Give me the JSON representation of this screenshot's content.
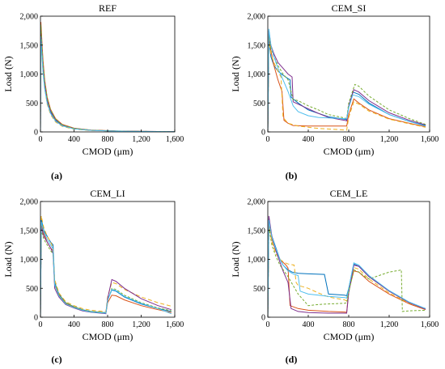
{
  "captions": [
    "(a)",
    "(b)",
    "(c)",
    "(d)"
  ],
  "colors": [
    "#0072BD",
    "#D95319",
    "#EDB120",
    "#7E2F8E",
    "#77AC30",
    "#4DBEEE",
    "#A2142F"
  ],
  "chart_data": [
    {
      "type": "line",
      "title": "REF",
      "xlabel": "CMOD (μm)",
      "ylabel": "Load (N)",
      "xlim": [
        0,
        1600
      ],
      "ylim": [
        0,
        2000
      ],
      "xticks": [
        "0",
        "400",
        "800",
        "1,200",
        "1,600"
      ],
      "yticks": [
        "0",
        "500",
        "1,000",
        "1,500",
        "2,000"
      ],
      "grid": false,
      "series": [
        {
          "x": [
            0,
            5,
            15,
            30,
            50,
            80,
            120,
            180,
            260,
            400,
            600,
            900,
            1200,
            1600
          ],
          "y": [
            0,
            1800,
            1500,
            1150,
            850,
            560,
            360,
            210,
            120,
            60,
            30,
            15,
            8,
            5
          ]
        },
        {
          "x": [
            0,
            5,
            15,
            30,
            50,
            80,
            120,
            180,
            260,
            400,
            600,
            900,
            1200,
            1600
          ],
          "y": [
            0,
            1900,
            1620,
            1250,
            900,
            600,
            390,
            230,
            130,
            65,
            32,
            16,
            9,
            5
          ]
        },
        {
          "x": [
            0,
            5,
            15,
            30,
            50,
            80,
            120,
            180,
            260,
            400,
            600,
            900,
            1200,
            1600
          ],
          "y": [
            0,
            1700,
            1400,
            1050,
            760,
            480,
            300,
            170,
            95,
            48,
            24,
            12,
            7,
            4
          ]
        },
        {
          "x": [
            0,
            5,
            15,
            30,
            50,
            80,
            120,
            180,
            260,
            400,
            600,
            900,
            1200,
            1600
          ],
          "y": [
            0,
            1750,
            1480,
            1120,
            820,
            530,
            340,
            195,
            110,
            56,
            28,
            14,
            8,
            5
          ]
        },
        {
          "x": [
            0,
            5,
            15,
            30,
            50,
            80,
            120,
            180,
            260,
            400,
            600,
            900,
            1200,
            1600
          ],
          "y": [
            0,
            1850,
            1560,
            1200,
            880,
            580,
            380,
            220,
            125,
            62,
            31,
            15,
            8,
            5
          ]
        },
        {
          "x": [
            0,
            5,
            15,
            30,
            50,
            80,
            120,
            180,
            260,
            400,
            600,
            900,
            1200,
            1600
          ],
          "y": [
            0,
            1650,
            1380,
            1040,
            750,
            500,
            320,
            185,
            105,
            52,
            26,
            13,
            7,
            4
          ]
        }
      ]
    },
    {
      "type": "line",
      "title": "CEM_SI",
      "xlabel": "CMOD (μm)",
      "ylabel": "Load (N)",
      "xlim": [
        0,
        1600
      ],
      "ylim": [
        0,
        2000
      ],
      "xticks": [
        "0",
        "400",
        "800",
        "1,200",
        "1,600"
      ],
      "yticks": [
        "0",
        "500",
        "1,000",
        "1,500",
        "2,000"
      ],
      "grid": false,
      "series": [
        {
          "x": [
            0,
            10,
            30,
            60,
            100,
            150,
            200,
            220,
            230,
            300,
            400,
            600,
            760,
            780,
            800,
            840,
            900,
            1000,
            1200,
            1400,
            1560
          ],
          "y": [
            0,
            1650,
            1300,
            1150,
            1050,
            980,
            920,
            900,
            600,
            500,
            380,
            260,
            220,
            210,
            430,
            690,
            650,
            500,
            300,
            180,
            110
          ]
        },
        {
          "x": [
            0,
            10,
            30,
            60,
            100,
            140,
            160,
            200,
            250,
            400,
            600,
            760,
            780,
            800,
            850,
            900,
            1000,
            1200,
            1400,
            1560
          ],
          "y": [
            0,
            1700,
            1400,
            1150,
            900,
            700,
            200,
            150,
            110,
            100,
            100,
            100,
            100,
            300,
            570,
            500,
            380,
            230,
            150,
            90
          ]
        },
        {
          "x": [
            0,
            10,
            30,
            60,
            100,
            130,
            150,
            200,
            300,
            500,
            700,
            780,
            800,
            850,
            900,
            1000,
            1200,
            1400,
            1560
          ],
          "y": [
            0,
            1600,
            1350,
            1200,
            1050,
            950,
            250,
            150,
            100,
            60,
            40,
            30,
            250,
            520,
            480,
            360,
            220,
            140,
            80
          ]
        },
        {
          "x": [
            0,
            10,
            30,
            60,
            100,
            150,
            200,
            240,
            250,
            300,
            400,
            500,
            600,
            760,
            780,
            800,
            850,
            900,
            1000,
            1200,
            1400,
            1560
          ],
          "y": [
            0,
            1750,
            1500,
            1350,
            1200,
            1100,
            1000,
            950,
            520,
            480,
            400,
            320,
            250,
            200,
            190,
            450,
            730,
            690,
            540,
            330,
            200,
            120
          ]
        },
        {
          "x": [
            0,
            10,
            30,
            60,
            100,
            150,
            200,
            250,
            300,
            400,
            500,
            600,
            760,
            780,
            800,
            860,
            900,
            1000,
            1200,
            1400,
            1560
          ],
          "y": [
            0,
            1680,
            1450,
            1300,
            1150,
            1000,
            900,
            560,
            540,
            450,
            380,
            300,
            240,
            230,
            500,
            820,
            790,
            620,
            380,
            230,
            130
          ]
        },
        {
          "x": [
            0,
            10,
            30,
            60,
            100,
            150,
            200,
            250,
            300,
            400,
            500,
            600,
            700,
            760,
            780,
            800,
            840,
            900,
            1000,
            1200,
            1400,
            1560
          ],
          "y": [
            0,
            1780,
            1500,
            1300,
            1100,
            900,
            700,
            450,
            350,
            280,
            250,
            240,
            235,
            230,
            230,
            420,
            640,
            610,
            480,
            300,
            180,
            100
          ]
        }
      ]
    },
    {
      "type": "line",
      "title": "CEM_LI",
      "xlabel": "CMOD (μm)",
      "ylabel": "Load (N)",
      "xlim": [
        0,
        1600
      ],
      "ylim": [
        0,
        2000
      ],
      "xticks": [
        "0",
        "400",
        "800",
        "1,200",
        "1,600"
      ],
      "yticks": [
        "0",
        "500",
        "1,000",
        "1,500",
        "2,000"
      ],
      "grid": false,
      "series": [
        {
          "x": [
            0,
            10,
            40,
            80,
            120,
            150,
            170,
            220,
            300,
            400,
            500,
            600,
            760,
            780,
            800,
            850,
            900,
            1000,
            1200,
            1400,
            1560
          ],
          "y": [
            0,
            1700,
            1500,
            1400,
            1300,
            1250,
            600,
            400,
            250,
            180,
            130,
            100,
            80,
            75,
            300,
            470,
            450,
            350,
            230,
            150,
            100
          ]
        },
        {
          "x": [
            0,
            10,
            40,
            80,
            120,
            150,
            170,
            220,
            300,
            400,
            500,
            600,
            760,
            780,
            800,
            850,
            900,
            1000,
            1200,
            1400,
            1560
          ],
          "y": [
            0,
            1600,
            1450,
            1300,
            1200,
            1150,
            550,
            380,
            240,
            170,
            120,
            90,
            70,
            65,
            250,
            380,
            370,
            300,
            200,
            130,
            80
          ]
        },
        {
          "x": [
            0,
            10,
            40,
            80,
            120,
            150,
            170,
            220,
            300,
            400,
            500,
            600,
            760,
            780,
            800,
            850,
            900,
            1000,
            1200,
            1400,
            1560
          ],
          "y": [
            0,
            1750,
            1550,
            1400,
            1300,
            1200,
            650,
            420,
            270,
            200,
            150,
            120,
            100,
            95,
            350,
            600,
            580,
            480,
            350,
            250,
            190
          ]
        },
        {
          "x": [
            0,
            10,
            40,
            80,
            120,
            150,
            170,
            220,
            300,
            400,
            500,
            600,
            760,
            780,
            800,
            850,
            900,
            1000,
            1200,
            1400,
            1560
          ],
          "y": [
            0,
            1550,
            1400,
            1300,
            1200,
            1100,
            500,
            350,
            220,
            160,
            110,
            85,
            65,
            60,
            320,
            650,
            620,
            500,
            320,
            200,
            130
          ]
        },
        {
          "x": [
            0,
            10,
            40,
            80,
            120,
            150,
            170,
            220,
            300,
            400,
            500,
            600,
            760,
            780,
            800,
            850,
            900,
            1000,
            1200,
            1400,
            1560
          ],
          "y": [
            0,
            1500,
            1350,
            1250,
            1150,
            1100,
            580,
            390,
            250,
            180,
            130,
            100,
            80,
            75,
            280,
            500,
            480,
            380,
            250,
            160,
            110
          ]
        },
        {
          "x": [
            0,
            10,
            40,
            80,
            120,
            150,
            170,
            220,
            300,
            400,
            500,
            600,
            760,
            780,
            800,
            850,
            900,
            1000,
            1200,
            1400,
            1560
          ],
          "y": [
            0,
            1650,
            1480,
            1350,
            1250,
            1180,
            560,
            370,
            230,
            165,
            120,
            90,
            72,
            68,
            290,
            480,
            460,
            360,
            240,
            150,
            60
          ]
        }
      ]
    },
    {
      "type": "line",
      "title": "CEM_LE",
      "xlabel": "CMOD (μm)",
      "ylabel": "Load (N)",
      "xlim": [
        0,
        1600
      ],
      "ylim": [
        0,
        2000
      ],
      "xticks": [
        "0",
        "400",
        "800",
        "1,200",
        "1,600"
      ],
      "yticks": [
        "0",
        "500",
        "1,000",
        "1,500",
        "2,000"
      ],
      "grid": false,
      "series": [
        {
          "x": [
            0,
            10,
            40,
            80,
            120,
            150,
            180,
            200,
            240,
            300,
            400,
            560,
            600,
            760,
            780,
            800,
            850,
            900,
            1000,
            1200,
            1400,
            1560
          ],
          "y": [
            0,
            1700,
            1400,
            1200,
            1000,
            900,
            850,
            820,
            780,
            760,
            750,
            740,
            400,
            380,
            370,
            500,
            920,
            880,
            700,
            450,
            250,
            150
          ]
        },
        {
          "x": [
            0,
            10,
            40,
            80,
            120,
            150,
            180,
            200,
            220,
            300,
            400,
            600,
            760,
            780,
            800,
            850,
            900,
            1000,
            1200,
            1400,
            1560
          ],
          "y": [
            0,
            1650,
            1350,
            1150,
            1000,
            950,
            900,
            850,
            200,
            150,
            120,
            100,
            90,
            85,
            450,
            800,
            780,
            620,
            400,
            230,
            130
          ]
        },
        {
          "x": [
            0,
            10,
            40,
            80,
            120,
            160,
            200,
            260,
            280,
            300,
            400,
            500,
            600,
            760,
            780,
            800,
            850,
            900,
            1000,
            1200,
            1400,
            1560
          ],
          "y": [
            0,
            1600,
            1300,
            1100,
            1000,
            950,
            920,
            900,
            600,
            550,
            500,
            420,
            350,
            300,
            280,
            480,
            860,
            830,
            660,
            420,
            240,
            140
          ]
        },
        {
          "x": [
            0,
            10,
            40,
            80,
            120,
            150,
            200,
            230,
            300,
            400,
            600,
            760,
            780,
            800,
            850,
            900,
            1000,
            1200,
            1400,
            1560
          ],
          "y": [
            0,
            1750,
            1400,
            1150,
            950,
            800,
            600,
            150,
            100,
            80,
            70,
            70,
            70,
            420,
            900,
            880,
            700,
            450,
            250,
            140
          ]
        },
        {
          "x": [
            0,
            10,
            40,
            80,
            120,
            160,
            200,
            300,
            400,
            500,
            600,
            760,
            780,
            800,
            850,
            900,
            960,
            1000,
            1100,
            1200,
            1300,
            1320,
            1330,
            1400,
            1560
          ],
          "y": [
            0,
            1550,
            1250,
            1050,
            900,
            800,
            700,
            400,
            200,
            220,
            230,
            240,
            250,
            430,
            820,
            780,
            700,
            660,
            720,
            780,
            810,
            820,
            100,
            110,
            120
          ]
        },
        {
          "x": [
            0,
            10,
            40,
            80,
            120,
            150,
            200,
            250,
            300,
            320,
            400,
            500,
            600,
            760,
            780,
            800,
            850,
            900,
            1000,
            1200,
            1400,
            1560
          ],
          "y": [
            0,
            1680,
            1380,
            1180,
            1000,
            900,
            800,
            750,
            720,
            450,
            400,
            380,
            360,
            340,
            330,
            500,
            940,
            900,
            720,
            460,
            260,
            150
          ]
        }
      ]
    }
  ]
}
